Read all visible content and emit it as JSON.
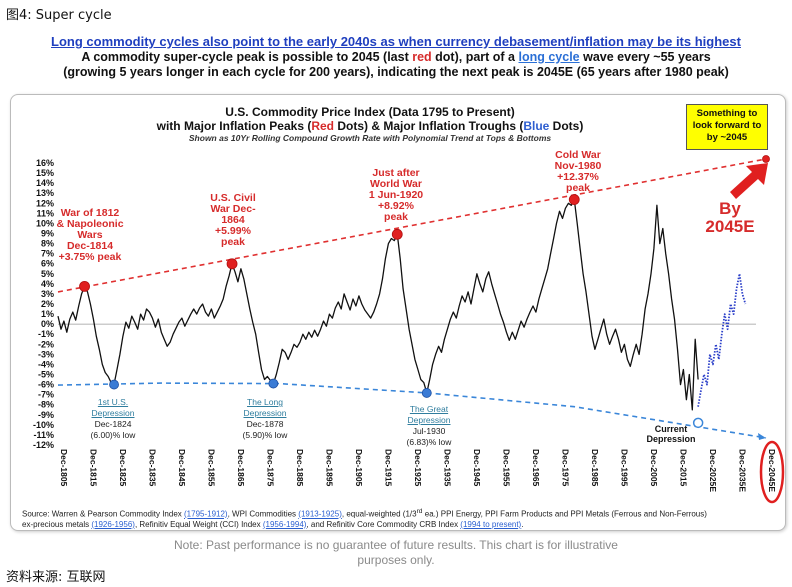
{
  "figure_label": "图4:  Super cycle",
  "headline": {
    "line1": "Long commodity cycles also point to the early 2040s as when currency debasement/inflation may be its highest",
    "line2_a": "A commodity super-cycle peak is possible to 2045 (last ",
    "line2_red": "red",
    "line2_b": " dot), part of a ",
    "line2_link": "long cycle",
    "line2_c": "  wave every ~55 years",
    "line3": "(growing 5 years longer in each cycle for 200 years), indicating the next peak is 2045E (65 years after 1980 peak)"
  },
  "chart_data": {
    "type": "line",
    "title_line1": "U.S. Commodity Price Index (Data 1795 to Present)",
    "title_line2_a": "with Major Inflation Peaks (",
    "title_line2_red": "Red",
    "title_line2_b": " Dots) & Major Inflation Troughs (",
    "title_line2_blue": "Blue",
    "title_line2_c": " Dots)",
    "subtitle": "Shown as 10Yr Rolling Compound Growth Rate with Polynomial Trend  at Tops & Bottoms",
    "ylim": [
      -12,
      16
    ],
    "y_ticks": [
      "16%",
      "15%",
      "14%",
      "13%",
      "12%",
      "11%",
      "10%",
      "9%",
      "8%",
      "7%",
      "6%",
      "5%",
      "4%",
      "3%",
      "2%",
      "1%",
      "0%",
      "-1%",
      "-2%",
      "-3%",
      "-4%",
      "-5%",
      "-6%",
      "-7%",
      "-8%",
      "-9%",
      "-10%",
      "-11%",
      "-12%"
    ],
    "x_ticks": [
      "Dec-1805",
      "Dec-1815",
      "Dec-1825",
      "Dec-1835",
      "Dec-1845",
      "Dec-1855",
      "Dec-1865",
      "Dec-1875",
      "Dec-1885",
      "Dec-1895",
      "Dec-1905",
      "Dec-1915",
      "Dec-1925",
      "Dec-1935",
      "Dec-1945",
      "Dec-1955",
      "Dec-1965",
      "Dec-1975",
      "Dec-1985",
      "Dec-1995",
      "Dec-2005",
      "Dec-2015",
      "Dec-2025E",
      "Dec-2035E",
      "Dec-2045E"
    ],
    "series": [
      {
        "color": "#111111",
        "points": [
          [
            1805,
            0.8
          ],
          [
            1806,
            -0.5
          ],
          [
            1807,
            0.3
          ],
          [
            1808,
            -0.8
          ],
          [
            1809,
            0.5
          ],
          [
            1810,
            1.2
          ],
          [
            1811,
            0.4
          ],
          [
            1812,
            1.8
          ],
          [
            1813,
            3.0
          ],
          [
            1814,
            3.75
          ],
          [
            1815,
            3.2
          ],
          [
            1816,
            2.0
          ],
          [
            1817,
            0.5
          ],
          [
            1818,
            -1.2
          ],
          [
            1819,
            -2.5
          ],
          [
            1820,
            -4.0
          ],
          [
            1821,
            -4.8
          ],
          [
            1822,
            -5.2
          ],
          [
            1823,
            -5.8
          ],
          [
            1824,
            -6.0
          ],
          [
            1825,
            -4.5
          ],
          [
            1826,
            -3.0
          ],
          [
            1827,
            -1.2
          ],
          [
            1828,
            0.2
          ],
          [
            1829,
            -0.4
          ],
          [
            1830,
            0.8
          ],
          [
            1831,
            0.2
          ],
          [
            1832,
            -0.5
          ],
          [
            1833,
            1.0
          ],
          [
            1834,
            0.4
          ],
          [
            1835,
            1.5
          ],
          [
            1836,
            1.2
          ],
          [
            1837,
            0.6
          ],
          [
            1838,
            -0.3
          ],
          [
            1839,
            0.5
          ],
          [
            1840,
            -0.8
          ],
          [
            1841,
            -1.5
          ],
          [
            1842,
            -2.2
          ],
          [
            1843,
            -1.8
          ],
          [
            1844,
            -1.0
          ],
          [
            1845,
            -0.4
          ],
          [
            1846,
            0.2
          ],
          [
            1847,
            0.6
          ],
          [
            1848,
            -0.2
          ],
          [
            1849,
            0.4
          ],
          [
            1850,
            1.0
          ],
          [
            1851,
            1.5
          ],
          [
            1852,
            1.0
          ],
          [
            1853,
            1.6
          ],
          [
            1854,
            2.0
          ],
          [
            1855,
            1.2
          ],
          [
            1856,
            0.8
          ],
          [
            1857,
            1.5
          ],
          [
            1858,
            0.6
          ],
          [
            1859,
            1.2
          ],
          [
            1860,
            1.8
          ],
          [
            1861,
            2.5
          ],
          [
            1862,
            3.8
          ],
          [
            1863,
            4.8
          ],
          [
            1864,
            5.99
          ],
          [
            1865,
            5.2
          ],
          [
            1866,
            4.2
          ],
          [
            1867,
            5.5
          ],
          [
            1868,
            4.5
          ],
          [
            1869,
            3.0
          ],
          [
            1870,
            1.5
          ],
          [
            1871,
            0.2
          ],
          [
            1872,
            -1.0
          ],
          [
            1873,
            -2.8
          ],
          [
            1874,
            -4.5
          ],
          [
            1875,
            -5.5
          ],
          [
            1876,
            -5.2
          ],
          [
            1877,
            -5.6
          ],
          [
            1878,
            -5.9
          ],
          [
            1879,
            -5.0
          ],
          [
            1880,
            -3.8
          ],
          [
            1881,
            -2.5
          ],
          [
            1882,
            -2.8
          ],
          [
            1883,
            -3.5
          ],
          [
            1884,
            -2.8
          ],
          [
            1885,
            -2.0
          ],
          [
            1886,
            -2.3
          ],
          [
            1887,
            -1.8
          ],
          [
            1888,
            -1.0
          ],
          [
            1889,
            -1.5
          ],
          [
            1890,
            -0.8
          ],
          [
            1891,
            -1.3
          ],
          [
            1892,
            -0.6
          ],
          [
            1893,
            -1.2
          ],
          [
            1894,
            -0.5
          ],
          [
            1895,
            0.3
          ],
          [
            1896,
            -0.2
          ],
          [
            1897,
            1.0
          ],
          [
            1898,
            0.6
          ],
          [
            1899,
            1.6
          ],
          [
            1900,
            2.2
          ],
          [
            1901,
            1.5
          ],
          [
            1902,
            3.0
          ],
          [
            1903,
            2.2
          ],
          [
            1904,
            1.4
          ],
          [
            1905,
            2.5
          ],
          [
            1906,
            1.8
          ],
          [
            1907,
            2.8
          ],
          [
            1908,
            2.0
          ],
          [
            1909,
            1.4
          ],
          [
            1910,
            1.0
          ],
          [
            1911,
            0.6
          ],
          [
            1912,
            1.2
          ],
          [
            1913,
            2.0
          ],
          [
            1914,
            3.0
          ],
          [
            1915,
            4.5
          ],
          [
            1916,
            6.5
          ],
          [
            1917,
            8.0
          ],
          [
            1918,
            8.5
          ],
          [
            1919,
            8.3
          ],
          [
            1920,
            8.92
          ],
          [
            1921,
            6.5
          ],
          [
            1922,
            3.5
          ],
          [
            1923,
            1.5
          ],
          [
            1924,
            -0.5
          ],
          [
            1925,
            -2.0
          ],
          [
            1926,
            -3.5
          ],
          [
            1927,
            -4.5
          ],
          [
            1928,
            -5.5
          ],
          [
            1929,
            -5.8
          ],
          [
            1930,
            -6.83
          ],
          [
            1931,
            -5.5
          ],
          [
            1932,
            -4.0
          ],
          [
            1933,
            -3.0
          ],
          [
            1934,
            -2.2
          ],
          [
            1935,
            -2.8
          ],
          [
            1936,
            -1.5
          ],
          [
            1937,
            -0.5
          ],
          [
            1938,
            0.5
          ],
          [
            1939,
            1.2
          ],
          [
            1940,
            0.6
          ],
          [
            1941,
            1.8
          ],
          [
            1942,
            2.8
          ],
          [
            1943,
            2.2
          ],
          [
            1944,
            3.2
          ],
          [
            1945,
            2.0
          ],
          [
            1946,
            3.5
          ],
          [
            1947,
            5.0
          ],
          [
            1948,
            4.0
          ],
          [
            1949,
            3.2
          ],
          [
            1950,
            4.5
          ],
          [
            1951,
            5.2
          ],
          [
            1952,
            4.0
          ],
          [
            1953,
            3.0
          ],
          [
            1954,
            2.0
          ],
          [
            1955,
            1.0
          ],
          [
            1956,
            0.2
          ],
          [
            1957,
            -0.8
          ],
          [
            1958,
            -1.6
          ],
          [
            1959,
            -0.8
          ],
          [
            1960,
            -1.5
          ],
          [
            1961,
            -0.6
          ],
          [
            1962,
            0.3
          ],
          [
            1963,
            -0.3
          ],
          [
            1964,
            0.5
          ],
          [
            1965,
            1.2
          ],
          [
            1966,
            1.8
          ],
          [
            1967,
            1.2
          ],
          [
            1968,
            2.5
          ],
          [
            1969,
            3.5
          ],
          [
            1970,
            4.5
          ],
          [
            1971,
            5.5
          ],
          [
            1972,
            7.0
          ],
          [
            1973,
            8.5
          ],
          [
            1974,
            10.0
          ],
          [
            1975,
            11.2
          ],
          [
            1976,
            10.5
          ],
          [
            1977,
            11.5
          ],
          [
            1978,
            12.0
          ],
          [
            1979,
            11.8
          ],
          [
            1980,
            12.37
          ],
          [
            1981,
            10.0
          ],
          [
            1982,
            7.5
          ],
          [
            1983,
            5.0
          ],
          [
            1984,
            3.2
          ],
          [
            1985,
            1.0
          ],
          [
            1986,
            -1.2
          ],
          [
            1987,
            -2.5
          ],
          [
            1988,
            -1.5
          ],
          [
            1989,
            -0.5
          ],
          [
            1990,
            0.5
          ],
          [
            1991,
            -1.0
          ],
          [
            1992,
            -2.0
          ],
          [
            1993,
            -1.2
          ],
          [
            1994,
            -0.5
          ],
          [
            1995,
            -1.5
          ],
          [
            1996,
            -2.8
          ],
          [
            1997,
            -2.0
          ],
          [
            1998,
            -3.5
          ],
          [
            1999,
            -4.2
          ],
          [
            2000,
            -3.0
          ],
          [
            2001,
            -2.0
          ],
          [
            2002,
            -3.0
          ],
          [
            2003,
            -1.0
          ],
          [
            2004,
            1.5
          ],
          [
            2005,
            3.0
          ],
          [
            2006,
            5.0
          ],
          [
            2007,
            7.5
          ],
          [
            2008,
            11.8
          ],
          [
            2009,
            8.0
          ],
          [
            2010,
            9.5
          ],
          [
            2011,
            7.0
          ],
          [
            2012,
            5.0
          ],
          [
            2013,
            2.5
          ],
          [
            2014,
            0.5
          ],
          [
            2015,
            -2.5
          ],
          [
            2016,
            -6.0
          ],
          [
            2017,
            -4.5
          ],
          [
            2018,
            -7.5
          ],
          [
            2019,
            -5.0
          ],
          [
            2020,
            -8.5
          ],
          [
            2021,
            -1.5
          ],
          [
            2022,
            -5.5
          ]
        ]
      },
      {
        "color": "#2b3fc9",
        "style": "dotted",
        "points": [
          [
            2022,
            -8.2
          ],
          [
            2023,
            -6.5
          ],
          [
            2024,
            -5.0
          ],
          [
            2025,
            -6.0
          ],
          [
            2026,
            -3.0
          ],
          [
            2027,
            -4.0
          ],
          [
            2028,
            -2.0
          ],
          [
            2029,
            -3.5
          ],
          [
            2030,
            -1.0
          ],
          [
            2031,
            1.0
          ],
          [
            2032,
            -0.5
          ],
          [
            2033,
            2.0
          ],
          [
            2034,
            1.0
          ],
          [
            2035,
            3.5
          ],
          [
            2036,
            5.0
          ],
          [
            2037,
            3.0
          ],
          [
            2038,
            2.0
          ]
        ]
      }
    ],
    "peaks": [
      {
        "x": 1814,
        "y": 3.75,
        "label": "War of 1812\n& Napoleonic\nWars\nDec-1814\n+3.75% peak"
      },
      {
        "x": 1864,
        "y": 5.99,
        "label": "U.S. Civil\nWar Dec-\n1864\n+5.99%\npeak"
      },
      {
        "x": 1920,
        "y": 8.92,
        "label": "Just after\nWorld War\n1 Jun-1920\n+8.92%\npeak"
      },
      {
        "x": 1980,
        "y": 12.37,
        "label": "Cold War\nNov-1980\n+12.37%\npeak"
      },
      {
        "x": 2045,
        "y": 16.4,
        "label": ""
      }
    ],
    "troughs": [
      {
        "x": 1824,
        "y": -6.0,
        "link": "1st U.S.\nDepression",
        "label": "Dec-1824\n(6.00)% low"
      },
      {
        "x": 1878,
        "y": -5.9,
        "link": "The Long\nDepression",
        "label": "Dec-1878\n(5.90)% low"
      },
      {
        "x": 1930,
        "y": -6.83,
        "link": "The Great\nDepression",
        "label": "Jul-1930\n(6.83)% low"
      },
      {
        "x": 2022,
        "y": -9.8,
        "link": "",
        "label": ""
      }
    ],
    "peak_trend": [
      [
        1805,
        3.2
      ],
      [
        2045,
        16.4
      ]
    ],
    "trough_trend": [
      [
        1805,
        -6.05
      ],
      [
        1840,
        -5.85
      ],
      [
        1880,
        -5.9
      ],
      [
        1930,
        -6.83
      ],
      [
        1980,
        -8.2
      ],
      [
        2045,
        -11.3
      ]
    ]
  },
  "callout": "Something to look forward to by ~2045",
  "by_label": "By\n2045E",
  "current_label": "Current\nDepression",
  "source": {
    "a": "Source: Warren & Pearson Commodity Index ",
    "a_link": "(1795-1912)",
    "b": ", WPI Commodities ",
    "b_link": "(1913-1925)",
    "c": ", equal-weighted (1/3",
    "c_sup": "rd",
    "c2": " ea.) PPI Energy, PPI Farm Products and PPI Metals (Ferrous and Non-Ferrous)",
    "d": "ex-precious metals ",
    "d_link": "(1926-1956)",
    "e": ", Refinitiv Equal Weight (CCI) Index ",
    "e_link": "(1956-1994)",
    "f": ", and Refinitiv Core Commodity CRB Index ",
    "f_link": "(1994 to present)",
    "g": "."
  },
  "note": "Note: Past performance is no guarantee of future results. This chart is for illustrative\npurposes only.",
  "footer": "资料来源:  互联网"
}
